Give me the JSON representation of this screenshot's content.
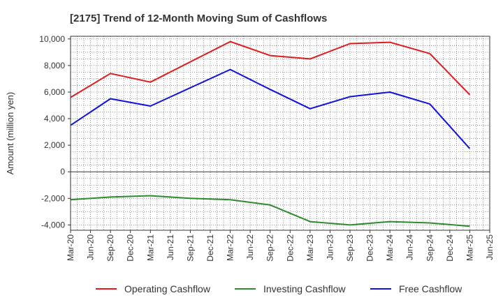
{
  "chart_data": {
    "type": "line",
    "title": "[2175]  Trend of 12-Month Moving Sum of Cashflows",
    "xlabel": "",
    "ylabel": "Amount (million yen)",
    "ylim": [
      -4400,
      10200
    ],
    "yticks": [
      -4000,
      -2000,
      0,
      2000,
      4000,
      6000,
      8000,
      10000
    ],
    "ytick_labels": [
      "-4,000",
      "-2,000",
      "0",
      "2,000",
      "4,000",
      "6,000",
      "8,000",
      "10,000"
    ],
    "x_tick_labels": [
      "Mar-20",
      "Jun-20",
      "Sep-20",
      "Dec-20",
      "Mar-21",
      "Jun-21",
      "Sep-21",
      "Dec-21",
      "Mar-22",
      "Jun-22",
      "Sep-22",
      "Dec-22",
      "Mar-23",
      "Jun-23",
      "Sep-23",
      "Dec-23",
      "Mar-24",
      "Jun-24",
      "Sep-24",
      "Dec-24",
      "Mar-25",
      "Jun-25"
    ],
    "grid": true,
    "legend_position": "bottom",
    "series": [
      {
        "name": "Operating Cashflow",
        "color": "#e31a1c",
        "x": [
          "Mar-20",
          "Sep-20",
          "Mar-21",
          "Mar-22",
          "Sep-22",
          "Mar-23",
          "Sep-23",
          "Mar-24",
          "Sep-24",
          "Mar-25"
        ],
        "values": [
          5600,
          7400,
          6750,
          9800,
          8750,
          8500,
          9650,
          9750,
          8900,
          5800
        ]
      },
      {
        "name": "Investing Cashflow",
        "color": "#2e8b2e",
        "x": [
          "Mar-20",
          "Sep-20",
          "Mar-21",
          "Sep-21",
          "Mar-22",
          "Sep-22",
          "Mar-23",
          "Sep-23",
          "Mar-24",
          "Sep-24",
          "Mar-25"
        ],
        "values": [
          -2100,
          -1900,
          -1800,
          -2000,
          -2100,
          -2500,
          -3750,
          -4000,
          -3750,
          -3850,
          -4100
        ]
      },
      {
        "name": "Free Cashflow",
        "color": "#1010e0",
        "x": [
          "Mar-20",
          "Sep-20",
          "Mar-21",
          "Mar-22",
          "Sep-22",
          "Mar-23",
          "Sep-23",
          "Mar-24",
          "Sep-24",
          "Mar-25"
        ],
        "values": [
          3500,
          5500,
          4950,
          7700,
          6200,
          4750,
          5650,
          6000,
          5100,
          1750
        ]
      }
    ]
  }
}
